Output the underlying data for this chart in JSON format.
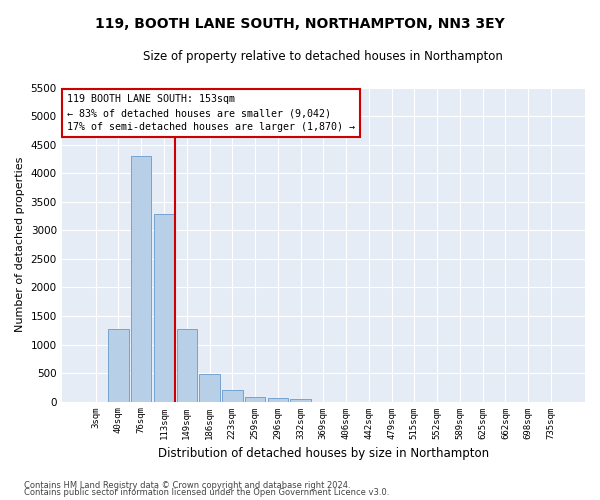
{
  "title": "119, BOOTH LANE SOUTH, NORTHAMPTON, NN3 3EY",
  "subtitle": "Size of property relative to detached houses in Northampton",
  "xlabel": "Distribution of detached houses by size in Northampton",
  "ylabel": "Number of detached properties",
  "bar_labels": [
    "3sqm",
    "40sqm",
    "76sqm",
    "113sqm",
    "149sqm",
    "186sqm",
    "223sqm",
    "259sqm",
    "296sqm",
    "332sqm",
    "369sqm",
    "406sqm",
    "442sqm",
    "479sqm",
    "515sqm",
    "552sqm",
    "589sqm",
    "625sqm",
    "662sqm",
    "698sqm",
    "735sqm"
  ],
  "bar_values": [
    0,
    1270,
    4300,
    3280,
    1280,
    480,
    210,
    85,
    60,
    50,
    0,
    0,
    0,
    0,
    0,
    0,
    0,
    0,
    0,
    0,
    0
  ],
  "bar_color": "#b8cfe8",
  "bar_edge_color": "#6699cc",
  "bg_color": "#e6ecf5",
  "grid_color": "#ffffff",
  "vline_color": "#cc0000",
  "ylim": [
    0,
    5500
  ],
  "yticks": [
    0,
    500,
    1000,
    1500,
    2000,
    2500,
    3000,
    3500,
    4000,
    4500,
    5000,
    5500
  ],
  "annotation_text": "119 BOOTH LANE SOUTH: 153sqm\n← 83% of detached houses are smaller (9,042)\n17% of semi-detached houses are larger (1,870) →",
  "annotation_box_color": "#ffffff",
  "annotation_border_color": "#cc0000",
  "footer_line1": "Contains HM Land Registry data © Crown copyright and database right 2024.",
  "footer_line2": "Contains public sector information licensed under the Open Government Licence v3.0.",
  "fig_bg": "#ffffff"
}
